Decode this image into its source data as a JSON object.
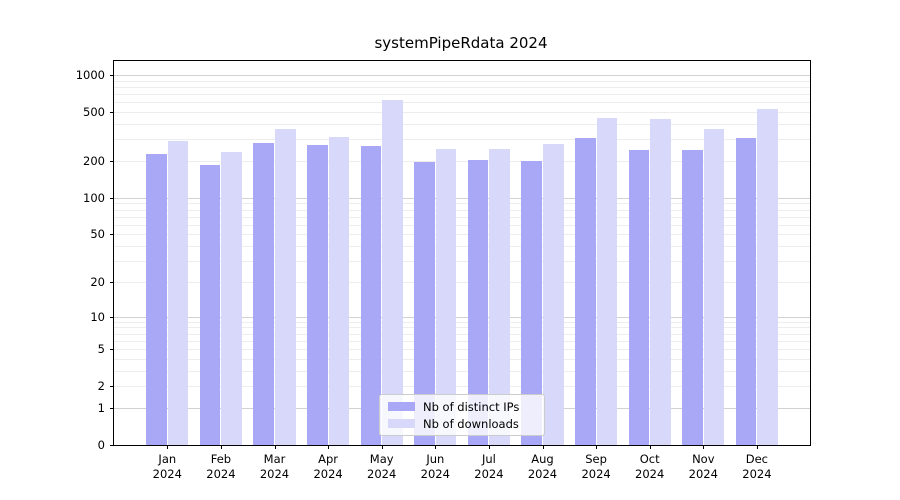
{
  "chart_data": {
    "type": "bar",
    "title": "systemPipeRdata 2024",
    "categories": [
      "Jan",
      "Feb",
      "Mar",
      "Apr",
      "May",
      "Jun",
      "Jul",
      "Aug",
      "Sep",
      "Oct",
      "Nov",
      "Dec"
    ],
    "year_label": "2024",
    "series": [
      {
        "name": "Nb of distinct IPs",
        "color": "#a8a8f6",
        "values": [
          230,
          187,
          280,
          268,
          265,
          195,
          203,
          201,
          306,
          248,
          245,
          306
        ]
      },
      {
        "name": "Nb of downloads",
        "color": "#d8d8fa",
        "values": [
          290,
          236,
          362,
          313,
          625,
          252,
          250,
          275,
          445,
          435,
          366,
          530
        ]
      }
    ],
    "y_scale": "log10(1+v)",
    "y_ticks": [
      1000,
      500,
      200,
      100,
      50,
      20,
      10,
      5,
      2,
      1,
      0
    ],
    "ylim": [
      0,
      1300
    ],
    "xlabel": "",
    "ylabel": "",
    "grid": "horizontal",
    "legend_position": "bottom-center-inside",
    "colors": {
      "major_grid": "#d2d2d2",
      "minor_grid": "#ededed",
      "axis": "#000000",
      "background": "#ffffff"
    }
  }
}
